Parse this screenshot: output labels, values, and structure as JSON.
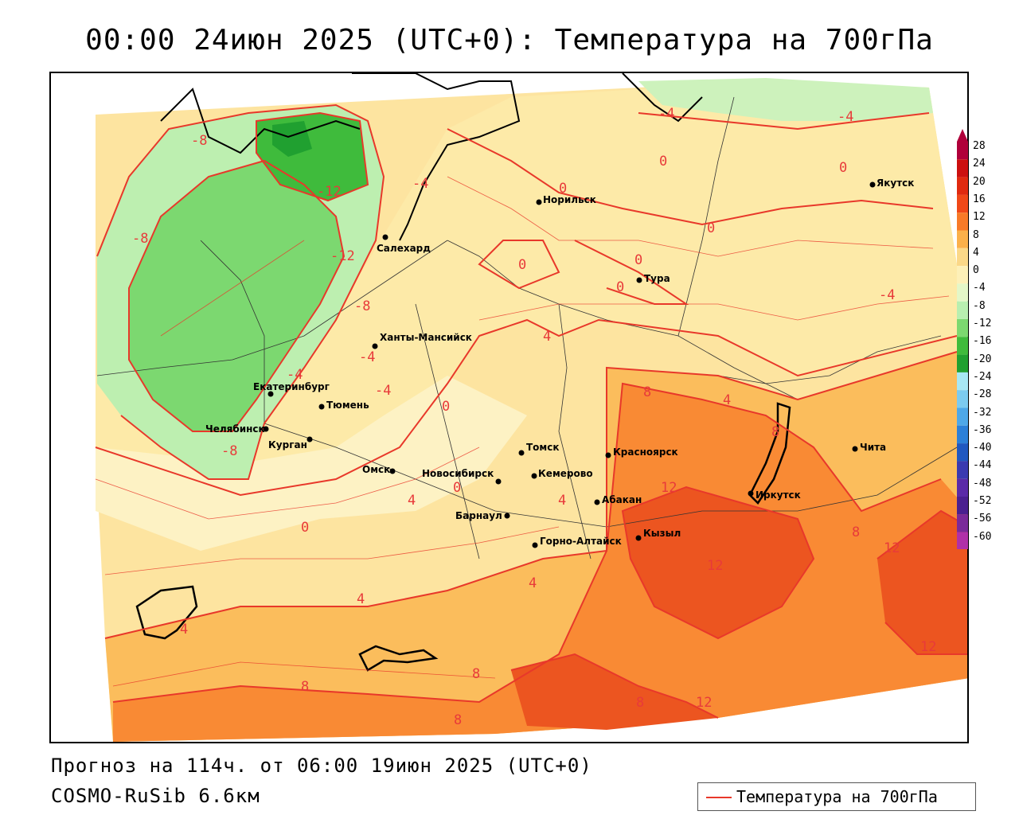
{
  "title": "00:00 24июн 2025 (UTC+0): Температура на 700гПа",
  "footer": {
    "forecast": "Прогноз на 114ч. от 06:00 19июн 2025 (UTC+0)",
    "model": "COSMO-RuSib 6.6км"
  },
  "legend": {
    "label": "Температура на 700гПа",
    "line_color": "#e8382a"
  },
  "colorbar": {
    "ticks": [
      "28",
      "24",
      "20",
      "16",
      "12",
      "8",
      "4",
      "0",
      "-4",
      "-8",
      "-12",
      "-16",
      "-20",
      "-24",
      "-28",
      "-32",
      "-36",
      "-40",
      "-44",
      "-48",
      "-52",
      "-56",
      "-60"
    ],
    "colors": [
      "#b0003a",
      "#cc1010",
      "#e02a10",
      "#f04818",
      "#f87a28",
      "#fbb04a",
      "#fbd888",
      "#fdf0b8",
      "#e4f7c8",
      "#b8efb0",
      "#7cd870",
      "#3fbb3c",
      "#20a030",
      "#a8e8f4",
      "#7ccbf0",
      "#4ea8e8",
      "#2c80d8",
      "#2058c0",
      "#3a3ab0",
      "#5a2aa8",
      "#4a2090",
      "#7a2a9a",
      "#b030a8"
    ]
  },
  "cities": [
    {
      "name": "Салехард"
    },
    {
      "name": "Норильск"
    },
    {
      "name": "Тура"
    },
    {
      "name": "Якутск"
    },
    {
      "name": "Ханты-Мансийск"
    },
    {
      "name": "Екатеринбург"
    },
    {
      "name": "Тюмень"
    },
    {
      "name": "Челябинск"
    },
    {
      "name": "Курган"
    },
    {
      "name": "Омск"
    },
    {
      "name": "Новосибирск"
    },
    {
      "name": "Томск"
    },
    {
      "name": "Кемерово"
    },
    {
      "name": "Барнаул"
    },
    {
      "name": "Красноярск"
    },
    {
      "name": "Абакан"
    },
    {
      "name": "Кызыл"
    },
    {
      "name": "Горно-Алтайск"
    },
    {
      "name": "Иркутск"
    },
    {
      "name": "Чита"
    }
  ],
  "contour_labels": [
    "-8",
    "-12",
    "-4",
    "-4",
    "0",
    "0",
    "0",
    "-4",
    "-8",
    "-12",
    "-8",
    "-4",
    "-4",
    "-4",
    "0",
    "0",
    "0",
    "0",
    "4",
    "4",
    "8",
    "8",
    "12",
    "12",
    "12",
    "12",
    "8",
    "-4",
    "0",
    "0",
    "0",
    "4",
    "4",
    "8",
    "8",
    "8",
    "8",
    "12",
    "4",
    "4",
    "-8",
    "4"
  ]
}
